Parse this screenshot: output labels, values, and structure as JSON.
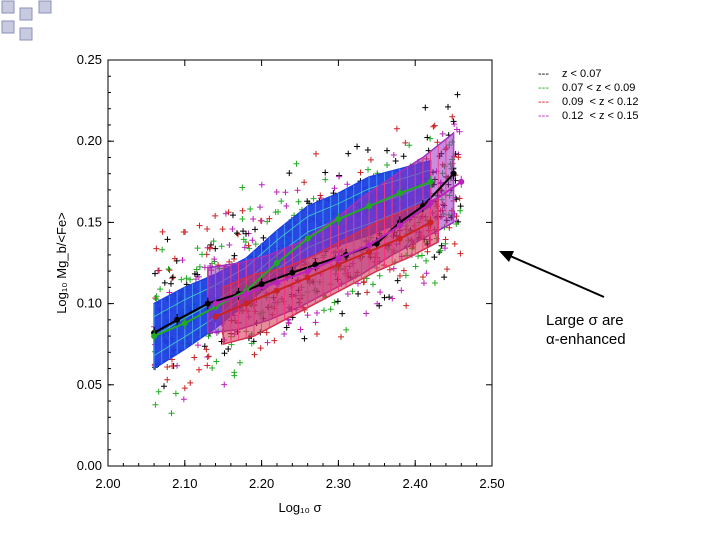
{
  "chart_data": {
    "type": "scatter",
    "title": "",
    "xlabel": "Log₁₀ σ",
    "ylabel": "Log₁₀ Mg_b/<Fe>",
    "xlim": [
      2.0,
      2.5
    ],
    "ylim": [
      0.0,
      0.25
    ],
    "xticks": [
      "2.00",
      "2.10",
      "2.20",
      "2.30",
      "2.40",
      "2.50"
    ],
    "yticks": [
      "0.00",
      "0.05",
      "0.10",
      "0.15",
      "0.20",
      "0.25"
    ],
    "legend": [
      {
        "dash": "---",
        "label": "z < 0.07",
        "color": "#000000"
      },
      {
        "dash": "---",
        "label": "0.07 < z < 0.09",
        "color": "#22aa22"
      },
      {
        "dash": "---",
        "label": "0.09  < z < 0.12",
        "color": "#cc2222"
      },
      {
        "dash": "---",
        "label": "0.12  < z < 0.15",
        "color": "#bb22bb"
      }
    ],
    "series": [
      {
        "name": "z < 0.07",
        "color": "#000000",
        "x": [
          2.06,
          2.09,
          2.13,
          2.17,
          2.2,
          2.24,
          2.27,
          2.31,
          2.35,
          2.38,
          2.41,
          2.45
        ],
        "y": [
          0.082,
          0.09,
          0.1,
          0.106,
          0.112,
          0.119,
          0.124,
          0.13,
          0.137,
          0.15,
          0.16,
          0.18
        ]
      },
      {
        "name": "0.07 < z < 0.09",
        "color": "#22aa22",
        "x": [
          2.06,
          2.1,
          2.14,
          2.18,
          2.22,
          2.26,
          2.3,
          2.34,
          2.38,
          2.42
        ],
        "y": [
          0.08,
          0.088,
          0.098,
          0.108,
          0.125,
          0.14,
          0.152,
          0.16,
          0.168,
          0.175
        ]
      },
      {
        "name": "0.09  < z < 0.12",
        "color": "#cc2222",
        "x": [
          2.14,
          2.18,
          2.22,
          2.26,
          2.3,
          2.34,
          2.38,
          2.42
        ],
        "y": [
          0.092,
          0.1,
          0.108,
          0.116,
          0.124,
          0.132,
          0.14,
          0.15
        ]
      },
      {
        "name": "0.12  < z < 0.15",
        "color": "#bb22bb",
        "x": [
          2.14,
          2.18,
          2.22,
          2.26,
          2.3,
          2.34,
          2.38,
          2.42,
          2.46
        ],
        "y": [
          0.1,
          0.106,
          0.113,
          0.12,
          0.128,
          0.136,
          0.148,
          0.162,
          0.175
        ]
      }
    ],
    "bands": [
      {
        "name": "z < 0.07",
        "fill": "#1b3fe0",
        "x": [
          2.06,
          2.1,
          2.14,
          2.18,
          2.22,
          2.26,
          2.3,
          2.34,
          2.38,
          2.42
        ],
        "low": [
          0.06,
          0.072,
          0.085,
          0.1,
          0.115,
          0.128,
          0.136,
          0.142,
          0.15,
          0.16
        ],
        "high": [
          0.1,
          0.11,
          0.118,
          0.128,
          0.145,
          0.16,
          0.168,
          0.178,
          0.183,
          0.188
        ]
      },
      {
        "name": "0.12  < z < 0.15",
        "fill": "#9b2fc0",
        "x": [
          2.13,
          2.17,
          2.21,
          2.25,
          2.29,
          2.33,
          2.37,
          2.41,
          2.45
        ],
        "low": [
          0.082,
          0.084,
          0.09,
          0.098,
          0.108,
          0.118,
          0.13,
          0.14,
          0.15
        ],
        "high": [
          0.122,
          0.125,
          0.13,
          0.138,
          0.15,
          0.165,
          0.178,
          0.19,
          0.205
        ]
      },
      {
        "name": "0.09  < z < 0.12",
        "fill": "#d0304a",
        "x": [
          2.15,
          2.19,
          2.23,
          2.27,
          2.31,
          2.35,
          2.39,
          2.43
        ],
        "low": [
          0.075,
          0.08,
          0.09,
          0.1,
          0.11,
          0.12,
          0.128,
          0.138
        ],
        "high": [
          0.11,
          0.118,
          0.122,
          0.13,
          0.14,
          0.15,
          0.158,
          0.165
        ]
      }
    ],
    "scatter_colors": [
      "#000000",
      "#22aa22",
      "#cc2222",
      "#bb22bb"
    ]
  },
  "annotation": {
    "line1": "Large σ are",
    "line2": "α-enhanced"
  }
}
